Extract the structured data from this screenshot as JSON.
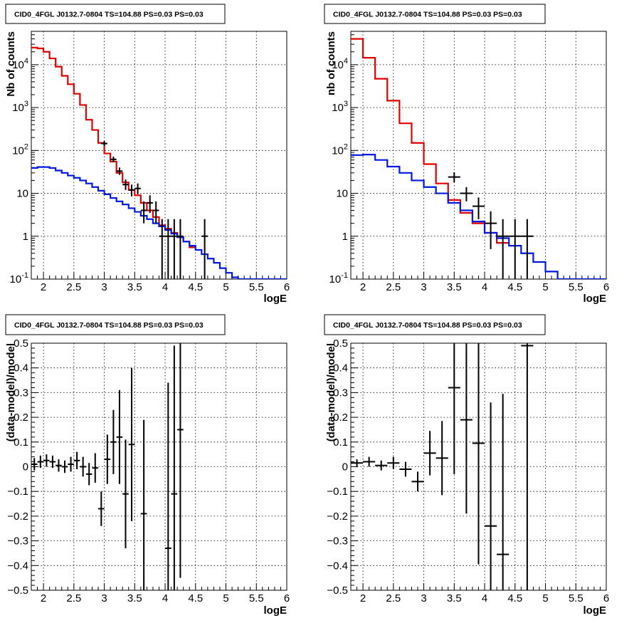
{
  "colors": {
    "data": "#000000",
    "model_total": "#e00000",
    "model_component": "#0018e0",
    "grid": "#000000"
  },
  "chart_data": [
    {
      "type": "line",
      "title": "CID0_4FGL J0132.7-0804 TS=104.88 PS=0.03 PS=0.03",
      "xlabel": "logE",
      "ylabel": "Nb of counts",
      "xlim": [
        1.8,
        6.0
      ],
      "ylim": [
        0.1,
        60000
      ],
      "yscale": "log",
      "grid": true,
      "x_ticks": [
        "2",
        "2.5",
        "3",
        "3.5",
        "4",
        "4.5",
        "5",
        "5.5",
        "6"
      ],
      "y_ticks": [
        "10^{-1}",
        "1",
        "10",
        "10^{2}",
        "10^{3}",
        "10^{4}"
      ],
      "bin_width": 0.1,
      "series": [
        {
          "kind": "step",
          "bins": [
            [
              1.8,
              25000
            ],
            [
              1.9,
              24000
            ],
            [
              2.0,
              20000
            ],
            [
              2.1,
              14000
            ],
            [
              2.2,
              9000
            ],
            [
              2.3,
              5500
            ],
            [
              2.4,
              3500
            ],
            [
              2.5,
              2100
            ],
            [
              2.6,
              1150
            ],
            [
              2.7,
              520
            ],
            [
              2.8,
              300
            ],
            [
              2.9,
              150
            ],
            [
              3.0,
              85
            ],
            [
              3.1,
              55
            ],
            [
              3.2,
              30
            ],
            [
              3.3,
              18
            ],
            [
              3.4,
              12
            ],
            [
              3.5,
              9
            ],
            [
              3.6,
              6
            ],
            [
              3.7,
              4
            ],
            [
              3.8,
              2.8
            ],
            [
              3.9,
              1.8
            ],
            [
              4.0,
              1.5
            ],
            [
              4.1,
              1.2
            ],
            [
              4.2,
              0.95
            ],
            [
              4.3,
              0.75
            ],
            [
              4.4,
              0.55
            ]
          ]
        },
        {
          "kind": "step",
          "bins": [
            [
              1.8,
              39
            ],
            [
              1.9,
              41
            ],
            [
              2.0,
              41
            ],
            [
              2.1,
              39
            ],
            [
              2.2,
              34
            ],
            [
              2.3,
              30
            ],
            [
              2.4,
              26
            ],
            [
              2.5,
              23
            ],
            [
              2.6,
              20
            ],
            [
              2.7,
              17
            ],
            [
              2.8,
              14
            ],
            [
              2.9,
              11.5
            ],
            [
              3.0,
              9.5
            ],
            [
              3.1,
              7.8
            ],
            [
              3.2,
              6.5
            ],
            [
              3.3,
              5.5
            ],
            [
              3.4,
              4.5
            ],
            [
              3.5,
              3.7
            ],
            [
              3.6,
              3.0
            ],
            [
              3.7,
              2.5
            ],
            [
              3.8,
              2.0
            ],
            [
              3.9,
              1.7
            ],
            [
              4.0,
              1.4
            ],
            [
              4.1,
              1.15
            ],
            [
              4.2,
              0.95
            ],
            [
              4.3,
              0.75
            ],
            [
              4.4,
              0.6
            ],
            [
              4.5,
              0.48
            ],
            [
              4.6,
              0.38
            ],
            [
              4.7,
              0.3
            ],
            [
              4.8,
              0.24
            ],
            [
              4.9,
              0.18
            ],
            [
              5.0,
              0.14
            ],
            [
              5.1,
              0.11
            ],
            [
              5.2,
              0.1
            ],
            [
              5.3,
              0.1
            ],
            [
              5.4,
              0.1
            ],
            [
              5.5,
              0.1
            ],
            [
              5.6,
              0.1
            ],
            [
              5.7,
              0.1
            ],
            [
              5.8,
              0.1
            ],
            [
              5.9,
              0.1
            ]
          ]
        },
        {
          "kind": "points",
          "points": [
            [
              3.0,
              145,
              20,
              18
            ],
            [
              3.15,
              62,
              10,
              9
            ],
            [
              3.25,
              33,
              7,
              6
            ],
            [
              3.35,
              16,
              5,
              4
            ],
            [
              3.45,
              12,
              4,
              3.5
            ],
            [
              3.55,
              13,
              4,
              3.5
            ],
            [
              3.65,
              4,
              2.5,
              2
            ],
            [
              3.75,
              6,
              3,
              2.5
            ],
            [
              3.85,
              4,
              2.5,
              2
            ],
            [
              3.95,
              1,
              1.5,
              0.99
            ],
            [
              4.05,
              1,
              1.5,
              0.99
            ],
            [
              4.15,
              1,
              1.5,
              0.99
            ],
            [
              4.25,
              1,
              1.5,
              0.99
            ],
            [
              4.65,
              1,
              1.5,
              0.99
            ]
          ]
        }
      ]
    },
    {
      "type": "line",
      "title": "CID0_4FGL J0132.7-0804 TS=104.88 PS=0.03 PS=0.03",
      "xlabel": "logE",
      "ylabel": "nb of counts",
      "xlim": [
        1.8,
        6.0
      ],
      "ylim": [
        0.1,
        60000
      ],
      "yscale": "log",
      "grid": true,
      "x_ticks": [
        "2",
        "2.5",
        "3",
        "3.5",
        "4",
        "4.5",
        "5",
        "5.5",
        "6"
      ],
      "y_ticks": [
        "10^{-1}",
        "1",
        "10",
        "10^{2}",
        "10^{3}",
        "10^{4}"
      ],
      "bin_width": 0.2,
      "series": [
        {
          "kind": "step",
          "bins": [
            [
              1.8,
              40000
            ],
            [
              2.0,
              14500
            ],
            [
              2.2,
              4700
            ],
            [
              2.4,
              1450
            ],
            [
              2.6,
              430
            ],
            [
              2.8,
              150
            ],
            [
              3.0,
              48
            ],
            [
              3.2,
              17
            ],
            [
              3.4,
              7
            ],
            [
              3.6,
              3.5
            ],
            [
              3.8,
              2
            ],
            [
              4.0,
              1.2
            ],
            [
              4.2,
              0.7
            ]
          ]
        },
        {
          "kind": "step",
          "bins": [
            [
              1.8,
              78
            ],
            [
              2.0,
              80
            ],
            [
              2.2,
              60
            ],
            [
              2.4,
              42
            ],
            [
              2.6,
              30
            ],
            [
              2.8,
              20
            ],
            [
              3.0,
              14
            ],
            [
              3.2,
              10
            ],
            [
              3.4,
              6
            ],
            [
              3.6,
              4
            ],
            [
              3.8,
              2.2
            ],
            [
              4.0,
              1.2
            ],
            [
              4.2,
              0.9
            ],
            [
              4.4,
              0.6
            ],
            [
              4.6,
              0.4
            ],
            [
              4.8,
              0.25
            ],
            [
              5.0,
              0.15
            ],
            [
              5.2,
              0.1
            ],
            [
              5.4,
              0.1
            ],
            [
              5.6,
              0.1
            ],
            [
              5.8,
              0.1
            ]
          ]
        },
        {
          "kind": "points",
          "points": [
            [
              3.5,
              24,
              7,
              6
            ],
            [
              3.7,
              10,
              4,
              3.5
            ],
            [
              3.9,
              5,
              3,
              2.5
            ],
            [
              4.1,
              2,
              1.8,
              1.5
            ],
            [
              4.3,
              1,
              1.5,
              0.99
            ],
            [
              4.5,
              1,
              1.5,
              0.99
            ],
            [
              4.7,
              1,
              1.5,
              0.99
            ]
          ]
        }
      ]
    },
    {
      "type": "scatter",
      "title": "CID0_4FGL J0132.7-0804 TS=104.88 PS=0.03 PS=0.03",
      "xlabel": "logE",
      "ylabel": "(data-model)/model",
      "xlim": [
        1.8,
        6.0
      ],
      "ylim": [
        -0.5,
        0.5
      ],
      "grid": true,
      "x_ticks": [
        "2",
        "2.5",
        "3",
        "3.5",
        "4",
        "4.5",
        "5",
        "5.5",
        "6"
      ],
      "y_ticks": [
        "-0.5",
        "-0.4",
        "-0.3",
        "-0.2",
        "-0.1",
        "0",
        "0.1",
        "0.2",
        "0.3",
        "0.4",
        "0.5"
      ],
      "half_width": 0.05,
      "points": [
        [
          1.85,
          0.01,
          0.025
        ],
        [
          1.95,
          0.02,
          0.025
        ],
        [
          2.05,
          0.025,
          0.025
        ],
        [
          2.15,
          0.02,
          0.025
        ],
        [
          2.25,
          0.005,
          0.025
        ],
        [
          2.35,
          0.0,
          0.025
        ],
        [
          2.45,
          0.01,
          0.03
        ],
        [
          2.55,
          0.025,
          0.035
        ],
        [
          2.65,
          0.0,
          0.04
        ],
        [
          2.75,
          -0.03,
          0.045
        ],
        [
          2.85,
          -0.005,
          0.06
        ],
        [
          2.95,
          -0.17,
          0.07
        ],
        [
          3.05,
          0.03,
          0.1
        ],
        [
          3.15,
          0.1,
          0.13
        ],
        [
          3.25,
          0.12,
          0.19
        ],
        [
          3.35,
          -0.11,
          0.22
        ],
        [
          3.45,
          0.09,
          0.31
        ],
        [
          3.65,
          -0.19,
          0.38
        ],
        [
          4.05,
          -0.33,
          0.67
        ],
        [
          4.15,
          -0.11,
          0.6
        ],
        [
          4.25,
          0.15,
          0.6
        ]
      ]
    },
    {
      "type": "scatter",
      "title": "CID0_4FGL J0132.7-0804 TS=104.88 PS=0.03 PS=0.03",
      "xlabel": "logE",
      "ylabel": "(data-model)/model",
      "xlim": [
        1.8,
        6.0
      ],
      "ylim": [
        -0.5,
        0.5
      ],
      "grid": true,
      "x_ticks": [
        "2",
        "2.5",
        "3",
        "3.5",
        "4",
        "4.5",
        "5",
        "5.5",
        "6"
      ],
      "y_ticks": [
        "-0.5",
        "-0.4",
        "-0.3",
        "-0.2",
        "-0.1",
        "0",
        "0.1",
        "0.2",
        "0.3",
        "0.4",
        "0.5"
      ],
      "half_width": 0.1,
      "points": [
        [
          1.9,
          0.015,
          0.015
        ],
        [
          2.1,
          0.02,
          0.02
        ],
        [
          2.3,
          0.005,
          0.02
        ],
        [
          2.5,
          0.015,
          0.025
        ],
        [
          2.7,
          -0.01,
          0.03
        ],
        [
          2.9,
          -0.06,
          0.04
        ],
        [
          3.1,
          0.055,
          0.09
        ],
        [
          3.3,
          0.035,
          0.15
        ],
        [
          3.5,
          0.32,
          0.35
        ],
        [
          3.7,
          0.19,
          0.38
        ],
        [
          3.9,
          0.095,
          0.49
        ],
        [
          4.1,
          -0.24,
          0.5
        ],
        [
          4.3,
          -0.355,
          0.65
        ],
        [
          4.7,
          0.49,
          0.99
        ]
      ]
    }
  ]
}
